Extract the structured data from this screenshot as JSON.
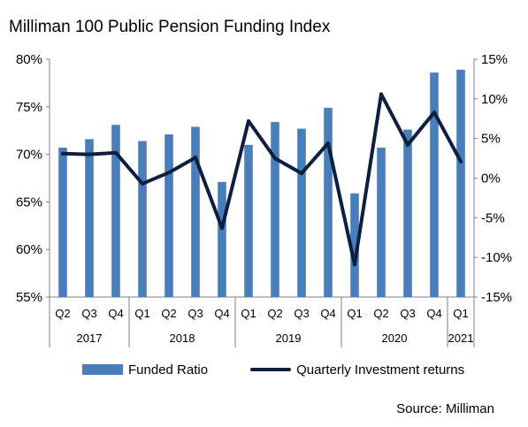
{
  "title": "Milliman 100 Public Pension Funding Index",
  "source": "Source: Milliman",
  "colors": {
    "bar": "#4a7ebb",
    "line": "#0c1f3f",
    "axis": "#808080",
    "grid": "#d9d9d9"
  },
  "chart_data": {
    "type": "bar",
    "title": "Milliman 100 Public Pension Funding Index",
    "categories": [
      "Q2",
      "Q3",
      "Q4",
      "Q1",
      "Q2",
      "Q3",
      "Q4",
      "Q1",
      "Q2",
      "Q3",
      "Q4",
      "Q1",
      "Q2",
      "Q3",
      "Q4",
      "Q1"
    ],
    "year_groups": [
      {
        "label": "2017",
        "count": 3
      },
      {
        "label": "2018",
        "count": 4
      },
      {
        "label": "2019",
        "count": 4
      },
      {
        "label": "2020",
        "count": 4
      },
      {
        "label": "2021",
        "count": 1
      }
    ],
    "series": [
      {
        "name": "Funded Ratio",
        "type": "bar",
        "axis": "left",
        "values": [
          70.7,
          71.6,
          73.1,
          71.4,
          72.1,
          72.9,
          67.1,
          71.0,
          73.4,
          72.7,
          74.9,
          65.9,
          70.7,
          72.6,
          78.6,
          78.9
        ]
      },
      {
        "name": "Quarterly Investment returns",
        "type": "line",
        "axis": "right",
        "values": [
          3.1,
          3.0,
          3.2,
          -0.7,
          0.7,
          2.6,
          -6.3,
          7.2,
          2.5,
          0.6,
          4.4,
          -10.9,
          10.6,
          4.2,
          8.3,
          2.1
        ]
      }
    ],
    "y_left": {
      "min": 55,
      "max": 80,
      "ticks": [
        "55%",
        "60%",
        "65%",
        "70%",
        "75%",
        "80%"
      ],
      "tick_values": [
        55,
        60,
        65,
        70,
        75,
        80
      ]
    },
    "y_right": {
      "min": -15,
      "max": 15,
      "ticks": [
        "-15%",
        "-10%",
        "-5%",
        "0%",
        "5%",
        "10%",
        "15%"
      ],
      "tick_values": [
        -15,
        -10,
        -5,
        0,
        5,
        10,
        15
      ]
    },
    "grid": false,
    "legend_position": "bottom"
  }
}
